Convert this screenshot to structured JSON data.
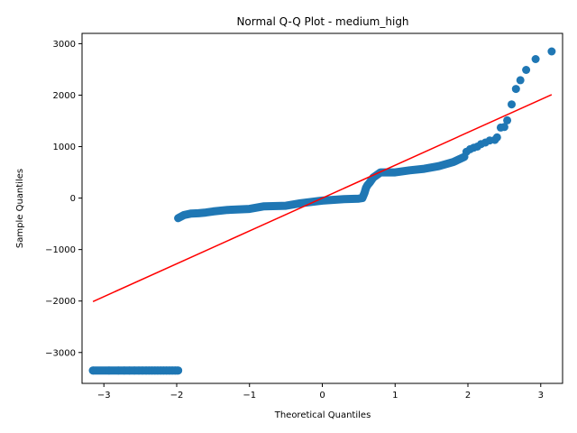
{
  "chart_data": {
    "type": "scatter",
    "title": "Normal Q-Q Plot - medium_high",
    "xlabel": "Theoretical Quantiles",
    "ylabel": "Sample Quantiles",
    "xlim": [
      -3.3,
      3.3
    ],
    "ylim": [
      -3600,
      3200
    ],
    "xticks": [
      -3,
      -2,
      -1,
      0,
      1,
      2,
      3
    ],
    "xtick_labels": [
      "−3",
      "−2",
      "−1",
      "0",
      "1",
      "2",
      "3"
    ],
    "yticks": [
      -3000,
      -2000,
      -1000,
      0,
      1000,
      2000,
      3000
    ],
    "ytick_labels": [
      "−3000",
      "−2000",
      "−1000",
      "0",
      "1000",
      "2000",
      "3000"
    ],
    "grid": false,
    "legend": "none",
    "colors": {
      "points": "#1f77b4",
      "line": "#ff0000"
    },
    "reference_line": {
      "x": [
        -3.15,
        3.15
      ],
      "y": [
        -2010,
        2010
      ]
    },
    "segments": [
      {
        "x": [
          -3.15,
          -1.98
        ],
        "y": [
          -3350,
          -3350
        ]
      },
      {
        "x": [
          -1.98,
          -1.9,
          -1.8,
          -1.7,
          -1.6,
          -1.5,
          -1.3,
          -1.0,
          -0.8,
          -0.5,
          -0.3,
          0.0,
          0.3,
          0.5,
          0.55,
          0.58,
          0.6,
          0.62,
          0.65,
          0.7,
          0.75,
          0.8,
          0.9,
          1.0,
          1.2,
          1.4,
          1.6,
          1.8,
          1.95
        ],
        "y": [
          -390,
          -330,
          -300,
          -295,
          -280,
          -260,
          -230,
          -210,
          -160,
          -150,
          -100,
          -50,
          -20,
          -10,
          0,
          100,
          200,
          250,
          300,
          400,
          450,
          500,
          500,
          500,
          540,
          570,
          620,
          700,
          800
        ]
      }
    ],
    "series": [
      {
        "x": [
          -3.15,
          -2.93,
          -2.8,
          -2.72,
          -2.65,
          -2.58,
          -2.52,
          -2.47,
          -2.42,
          -2.38,
          -2.34,
          -2.3,
          -2.26,
          -2.22,
          -2.18,
          -2.14,
          -2.1,
          -2.06,
          -2.02,
          -1.98,
          1.98,
          2.03,
          2.08,
          2.13,
          2.18,
          2.24,
          2.3,
          2.37,
          2.4,
          2.45,
          2.5,
          2.54,
          2.6,
          2.66,
          2.72,
          2.8,
          2.93,
          3.15
        ],
        "y": [
          -3350,
          -3350,
          -3350,
          -3350,
          -3350,
          -3350,
          -3350,
          -3350,
          -3350,
          -3350,
          -3350,
          -3350,
          -3350,
          -3350,
          -3350,
          -3350,
          -3350,
          -3350,
          -3350,
          -3350,
          900,
          950,
          980,
          1000,
          1050,
          1080,
          1120,
          1130,
          1180,
          1370,
          1380,
          1510,
          1820,
          2120,
          2290,
          2490,
          2700,
          2850
        ]
      }
    ]
  }
}
